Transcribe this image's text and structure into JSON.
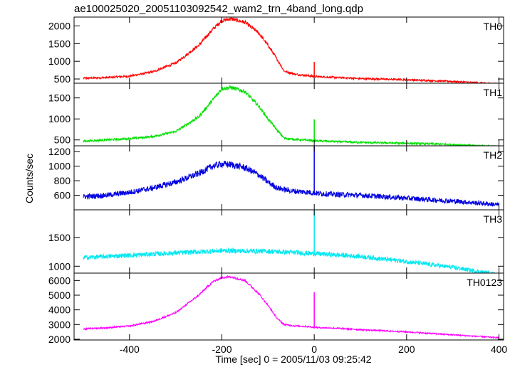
{
  "chart_data": {
    "type": "line",
    "title": "ae100025020_20051103092542_wam2_trn_4band_long.qdp",
    "xlabel": "Time [sec] 0 = 2005/11/03 09:25:42",
    "ylabel": "Counts/sec",
    "xlim": [
      -520,
      410
    ],
    "x_ticks": [
      -400,
      -200,
      0,
      200,
      400
    ],
    "grid": false,
    "series": [
      {
        "name": "TH0",
        "color": "#ff0000",
        "ylim": [
          380,
          2250
        ],
        "y_ticks": [
          500,
          1000,
          1500,
          2000
        ],
        "x": [
          -500,
          -450,
          -400,
          -350,
          -300,
          -250,
          -220,
          -200,
          -180,
          -150,
          -120,
          -100,
          -80,
          -65,
          -40,
          -10,
          0,
          50,
          100,
          200,
          300,
          400
        ],
        "y": [
          520,
          540,
          580,
          700,
          950,
          1450,
          1900,
          2150,
          2200,
          2100,
          1800,
          1450,
          1050,
          720,
          630,
          590,
          570,
          540,
          510,
          480,
          430,
          360
        ],
        "noise": 30,
        "spike": {
          "x": 0,
          "y": 980
        }
      },
      {
        "name": "TH1",
        "color": "#00e000",
        "ylim": [
          360,
          1850
        ],
        "y_ticks": [
          500,
          1000,
          1500
        ],
        "x": [
          -500,
          -450,
          -400,
          -350,
          -300,
          -250,
          -220,
          -200,
          -180,
          -150,
          -120,
          -100,
          -80,
          -65,
          -40,
          -10,
          0,
          50,
          100,
          200,
          300,
          400
        ],
        "y": [
          470,
          500,
          530,
          580,
          700,
          1050,
          1450,
          1720,
          1750,
          1650,
          1300,
          1000,
          730,
          540,
          510,
          490,
          480,
          460,
          440,
          420,
          390,
          340
        ],
        "noise": 28,
        "spike": {
          "x": 0,
          "y": 990
        }
      },
      {
        "name": "TH2",
        "color": "#0000e0",
        "ylim": [
          400,
          1280
        ],
        "y_ticks": [
          600,
          800,
          1000,
          1200
        ],
        "x": [
          -500,
          -450,
          -400,
          -350,
          -300,
          -250,
          -220,
          -200,
          -180,
          -150,
          -120,
          -100,
          -80,
          -50,
          -10,
          0,
          50,
          100,
          200,
          300,
          400
        ],
        "y": [
          580,
          600,
          640,
          700,
          780,
          900,
          1000,
          1030,
          1020,
          980,
          880,
          780,
          700,
          660,
          640,
          630,
          610,
          600,
          560,
          520,
          470
        ],
        "noise": 40,
        "spike": {
          "x": 0,
          "y": 1300
        }
      },
      {
        "name": "TH3",
        "color": "#00e8f0",
        "ylim": [
          880,
          1980
        ],
        "y_ticks": [
          1000,
          1500
        ],
        "x": [
          -500,
          -400,
          -300,
          -200,
          -100,
          0,
          100,
          200,
          300,
          400
        ],
        "y": [
          1150,
          1190,
          1230,
          1270,
          1260,
          1220,
          1170,
          1080,
          980,
          850
        ],
        "noise": 45,
        "spike": {
          "x": 0,
          "y": 2050
        }
      },
      {
        "name": "TH0123",
        "color": "#ff00ff",
        "ylim": [
          1950,
          6500
        ],
        "y_ticks": [
          2000,
          3000,
          4000,
          5000,
          6000
        ],
        "x": [
          -500,
          -450,
          -400,
          -350,
          -300,
          -250,
          -220,
          -200,
          -180,
          -150,
          -120,
          -100,
          -80,
          -65,
          -40,
          -10,
          0,
          50,
          100,
          200,
          300,
          400
        ],
        "y": [
          2700,
          2780,
          2900,
          3200,
          3800,
          5000,
          5900,
          6200,
          6250,
          6000,
          5100,
          4300,
          3400,
          3000,
          2900,
          2850,
          2800,
          2750,
          2650,
          2500,
          2300,
          2100
        ],
        "noise": 55,
        "spike": {
          "x": 0,
          "y": 5200
        }
      }
    ]
  }
}
